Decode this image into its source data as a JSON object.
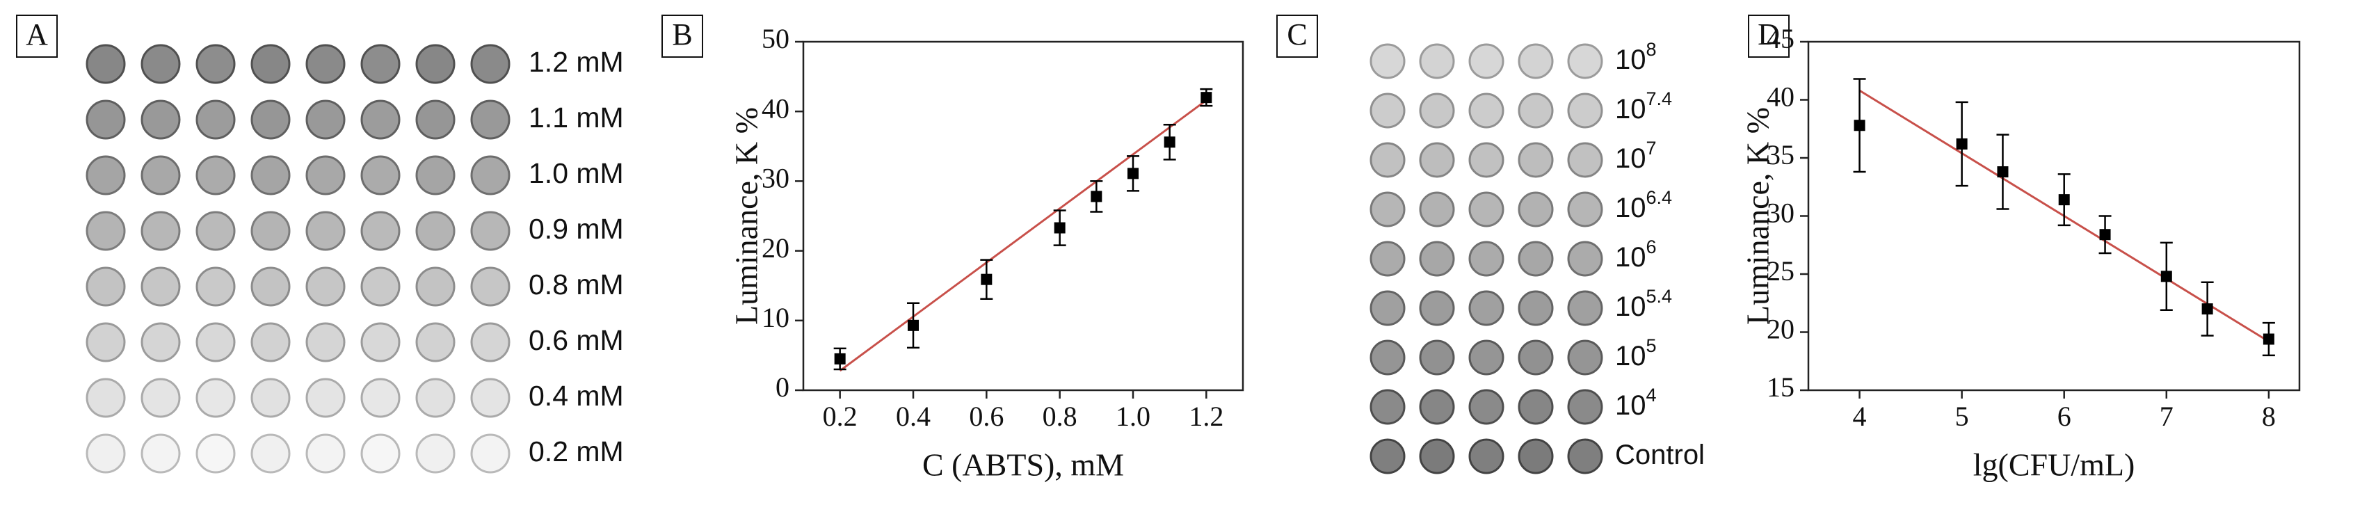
{
  "panels": {
    "A": {
      "label": "A",
      "rows": [
        "1.2 mM",
        "1.1 mM",
        "1.0 mM",
        "0.9 mM",
        "0.8 mM",
        "0.6 mM",
        "0.4 mM",
        "0.2 mM"
      ]
    },
    "C": {
      "label": "C",
      "rows": [
        {
          "base": "10",
          "exponent": "8"
        },
        {
          "base": "10",
          "exponent": "7.4"
        },
        {
          "base": "10",
          "exponent": "7"
        },
        {
          "base": "10",
          "exponent": "6.4"
        },
        {
          "base": "10",
          "exponent": "6"
        },
        {
          "base": "10",
          "exponent": "5.4"
        },
        {
          "base": "10",
          "exponent": "5"
        },
        {
          "base": "10",
          "exponent": "4"
        },
        {
          "base": "Control"
        }
      ]
    }
  },
  "chart_data": [
    {
      "type": "scatter",
      "panel_label": "B",
      "x_label": "C (ABTS), mM",
      "y_label": "Luminance, K %",
      "x": [
        0.2,
        0.4,
        0.6,
        0.8,
        0.9,
        1.0,
        1.1,
        1.2
      ],
      "series": [
        {
          "color": "#000000",
          "values": [
            4.5,
            9.3,
            15.9,
            23.3,
            27.8,
            31.1,
            35.6,
            42.0
          ],
          "errors": [
            1.5,
            3.2,
            2.8,
            2.5,
            2.2,
            2.5,
            2.5,
            1.2
          ]
        }
      ],
      "fit": {
        "color": "#c8504a",
        "x": [
          0.2,
          1.2
        ],
        "y": [
          2.8,
          41.6
        ]
      },
      "xlim": [
        0.1,
        1.3
      ],
      "xticks": [
        0.2,
        0.4,
        0.6,
        0.8,
        {
          "value": 1,
          "label": "1.0"
        },
        1.2
      ],
      "ylim": [
        0,
        50
      ],
      "yticks": [
        0,
        10,
        20,
        30,
        40,
        50
      ],
      "grid": false
    },
    {
      "type": "scatter",
      "panel_label": "D",
      "x_label": "lg(CFU/mL)",
      "y_label": "Luminance, K %",
      "x": [
        4,
        5,
        5.4,
        6,
        6.4,
        7,
        7.4,
        8
      ],
      "series": [
        {
          "color": "#000000",
          "values": [
            37.8,
            36.2,
            33.8,
            31.4,
            28.4,
            24.8,
            22.0,
            19.4
          ],
          "errors": [
            4.0,
            3.6,
            3.2,
            2.2,
            1.6,
            2.9,
            2.3,
            1.4
          ]
        }
      ],
      "fit": {
        "color": "#c8504a",
        "x": [
          4,
          8
        ],
        "y": [
          40.8,
          19.2
        ]
      },
      "xlim": [
        3.5,
        8.3
      ],
      "xticks": [
        4,
        5,
        6,
        7,
        8
      ],
      "ylim": [
        15,
        45
      ],
      "yticks": [
        15,
        20,
        25,
        30,
        35,
        40,
        45
      ],
      "grid": false
    }
  ]
}
